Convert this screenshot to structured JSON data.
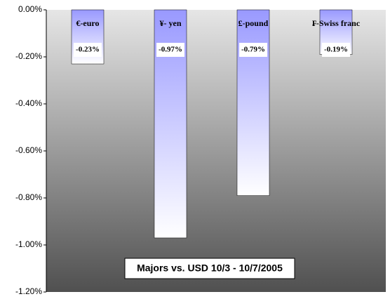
{
  "chart_data": {
    "type": "bar",
    "title": "Majors vs. USD 10/3 - 10/7/2005",
    "categories": [
      "€-euro",
      "¥- yen",
      "£-pound",
      "₣-Swiss franc"
    ],
    "values": [
      -0.23,
      -0.97,
      -0.79,
      -0.19
    ],
    "value_labels": [
      "-0.23%",
      "-0.97%",
      "-0.79%",
      "-0.19%"
    ],
    "color": "#9999ff",
    "ylim": [
      -1.2,
      0
    ],
    "yticks": [
      {
        "value": 0,
        "label": "0.00%"
      },
      {
        "value": -0.2,
        "label": "-0.20%"
      },
      {
        "value": -0.4,
        "label": "-0.40%"
      },
      {
        "value": -0.6,
        "label": "-0.60%"
      },
      {
        "value": -0.8,
        "label": "-0.80%"
      },
      {
        "value": -1.0,
        "label": "-1.00%"
      },
      {
        "value": -1.2,
        "label": "-1.20%"
      }
    ]
  }
}
